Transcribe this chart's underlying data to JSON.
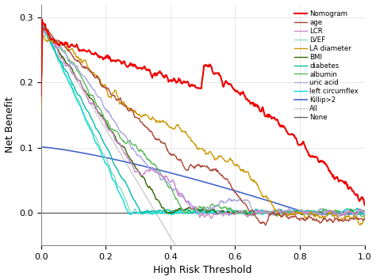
{
  "title": "",
  "xlabel": "High Risk Threshold",
  "ylabel": "Net Benefit",
  "xlim": [
    0.0,
    1.0
  ],
  "ylim": [
    -0.05,
    0.32
  ],
  "yticks": [
    0.0,
    0.1,
    0.2,
    0.3
  ],
  "xticks": [
    0.0,
    0.2,
    0.4,
    0.6,
    0.8,
    1.0
  ],
  "legend_entries": [
    {
      "label": "Nomogram",
      "color": "#EE0000",
      "lw": 1.5
    },
    {
      "label": "age",
      "color": "#AA4433",
      "lw": 1.0
    },
    {
      "label": "LCR",
      "color": "#CC88CC",
      "lw": 1.0
    },
    {
      "label": "LVEF",
      "color": "#88DDBB",
      "lw": 1.0
    },
    {
      "label": "LA diameter",
      "color": "#CC9900",
      "lw": 1.0
    },
    {
      "label": "BMI",
      "color": "#336600",
      "lw": 1.0
    },
    {
      "label": "diabetes",
      "color": "#00BBAA",
      "lw": 1.0
    },
    {
      "label": "albumin",
      "color": "#55BB55",
      "lw": 1.0
    },
    {
      "label": "uric acid",
      "color": "#AAAADD",
      "lw": 1.0
    },
    {
      "label": "left circumflex",
      "color": "#00DDDD",
      "lw": 1.0
    },
    {
      "label": "Killip>2",
      "color": "#4466CC",
      "lw": 1.2
    },
    {
      "label": "All",
      "color": "#CCCCCC",
      "lw": 1.0
    },
    {
      "label": "None",
      "color": "#666666",
      "lw": 1.0
    }
  ],
  "background_color": "#FFFFFF",
  "grid_color": "#DDDDDD",
  "figsize": [
    4.74,
    3.54
  ],
  "dpi": 100
}
